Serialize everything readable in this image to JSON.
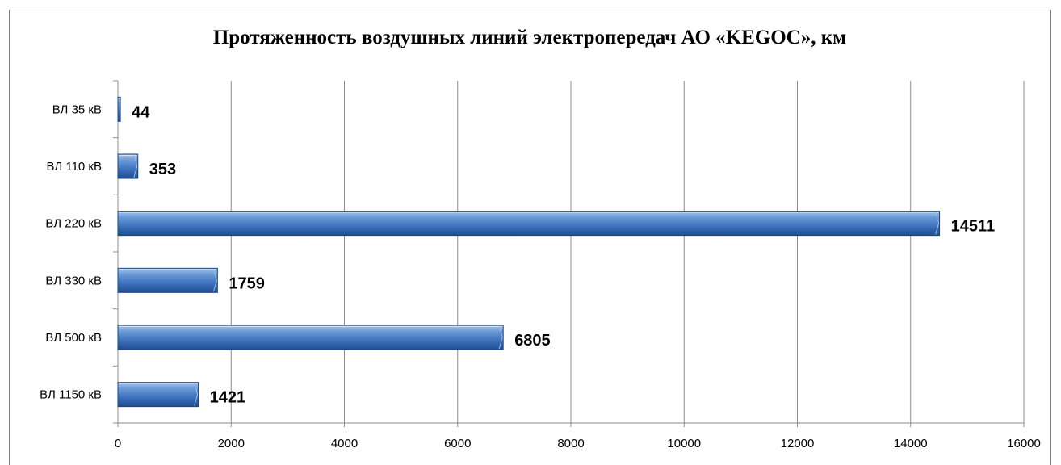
{
  "chart_data": {
    "type": "bar",
    "orientation": "horizontal",
    "title": "Протяженность воздушных линий электропередач АО «KEGOC», км",
    "categories": [
      "ВЛ 35 кВ",
      "ВЛ 110 кВ",
      "ВЛ 220 кВ",
      "ВЛ 330 кВ",
      "ВЛ 500 кВ",
      "ВЛ 1150 кВ"
    ],
    "values": [
      44,
      353,
      14511,
      1759,
      6805,
      1421
    ],
    "data_labels": [
      "44",
      "353",
      "14511",
      "1759",
      "6805",
      "1421"
    ],
    "xlim": [
      0,
      16000
    ],
    "x_ticks": [
      0,
      2000,
      4000,
      6000,
      8000,
      10000,
      12000,
      14000,
      16000
    ],
    "x_tick_labels": [
      "0",
      "2000",
      "4000",
      "6000",
      "8000",
      "10000",
      "12000",
      "14000",
      "16000"
    ],
    "grid": true,
    "legend": "none",
    "bar_color": "#4f81bd"
  }
}
